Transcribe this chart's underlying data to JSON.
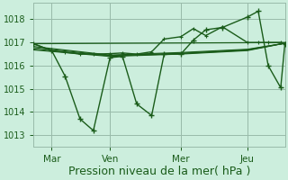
{
  "bg_color": "#cceedd",
  "plot_bg_color": "#cceedd",
  "grid_color": "#99bbaa",
  "line_color": "#1a5c1a",
  "xlabel": "Pression niveau de la mer( hPa )",
  "xlabel_color": "#1a5c1a",
  "xlabel_fontsize": 9,
  "ylim": [
    1012.5,
    1018.7
  ],
  "yticks": [
    1013,
    1014,
    1015,
    1016,
    1017,
    1018
  ],
  "ytick_fontsize": 7,
  "xtick_labels": [
    "Mar",
    "Ven",
    "Mer",
    "Jeu"
  ],
  "xtick_positions": [
    30,
    100,
    185,
    265
  ],
  "xmin": 8,
  "xmax": 310,
  "jagged_x": [
    8,
    30,
    46,
    64,
    80,
    100,
    115,
    132,
    150,
    165,
    185,
    200,
    215,
    235,
    265,
    278,
    290,
    305,
    310
  ],
  "jagged_y": [
    1016.95,
    1016.65,
    1015.55,
    1013.7,
    1013.2,
    1016.35,
    1016.4,
    1014.35,
    1013.85,
    1016.5,
    1016.5,
    1017.1,
    1017.55,
    1017.65,
    1018.1,
    1018.35,
    1016.0,
    1015.05,
    1016.95
  ],
  "smooth1_x": [
    8,
    100,
    185,
    265,
    310
  ],
  "smooth1_y": [
    1016.68,
    1016.4,
    1016.5,
    1016.65,
    1016.97
  ],
  "smooth2_x": [
    8,
    100,
    185,
    265,
    310
  ],
  "smooth2_y": [
    1016.72,
    1016.42,
    1016.52,
    1016.67,
    1016.97
  ],
  "smooth3_x": [
    8,
    100,
    185,
    265,
    310
  ],
  "smooth3_y": [
    1016.78,
    1016.44,
    1016.54,
    1016.69,
    1016.97
  ],
  "smooth4_x": [
    8,
    100,
    185,
    265,
    310
  ],
  "smooth4_y": [
    1016.83,
    1016.46,
    1016.57,
    1016.71,
    1016.97
  ],
  "trend_x": [
    8,
    310
  ],
  "trend_y": [
    1016.95,
    1017.0
  ],
  "upper_x": [
    8,
    30,
    46,
    64,
    80,
    100,
    115,
    132,
    150,
    165,
    185,
    200,
    215,
    235,
    265,
    278,
    290,
    305,
    310
  ],
  "upper_y": [
    1016.95,
    1016.65,
    1016.58,
    1016.5,
    1016.5,
    1016.52,
    1016.55,
    1016.5,
    1016.6,
    1017.15,
    1017.25,
    1017.6,
    1017.3,
    1017.68,
    1017.0,
    1017.0,
    1017.0,
    1017.0,
    1016.97
  ]
}
